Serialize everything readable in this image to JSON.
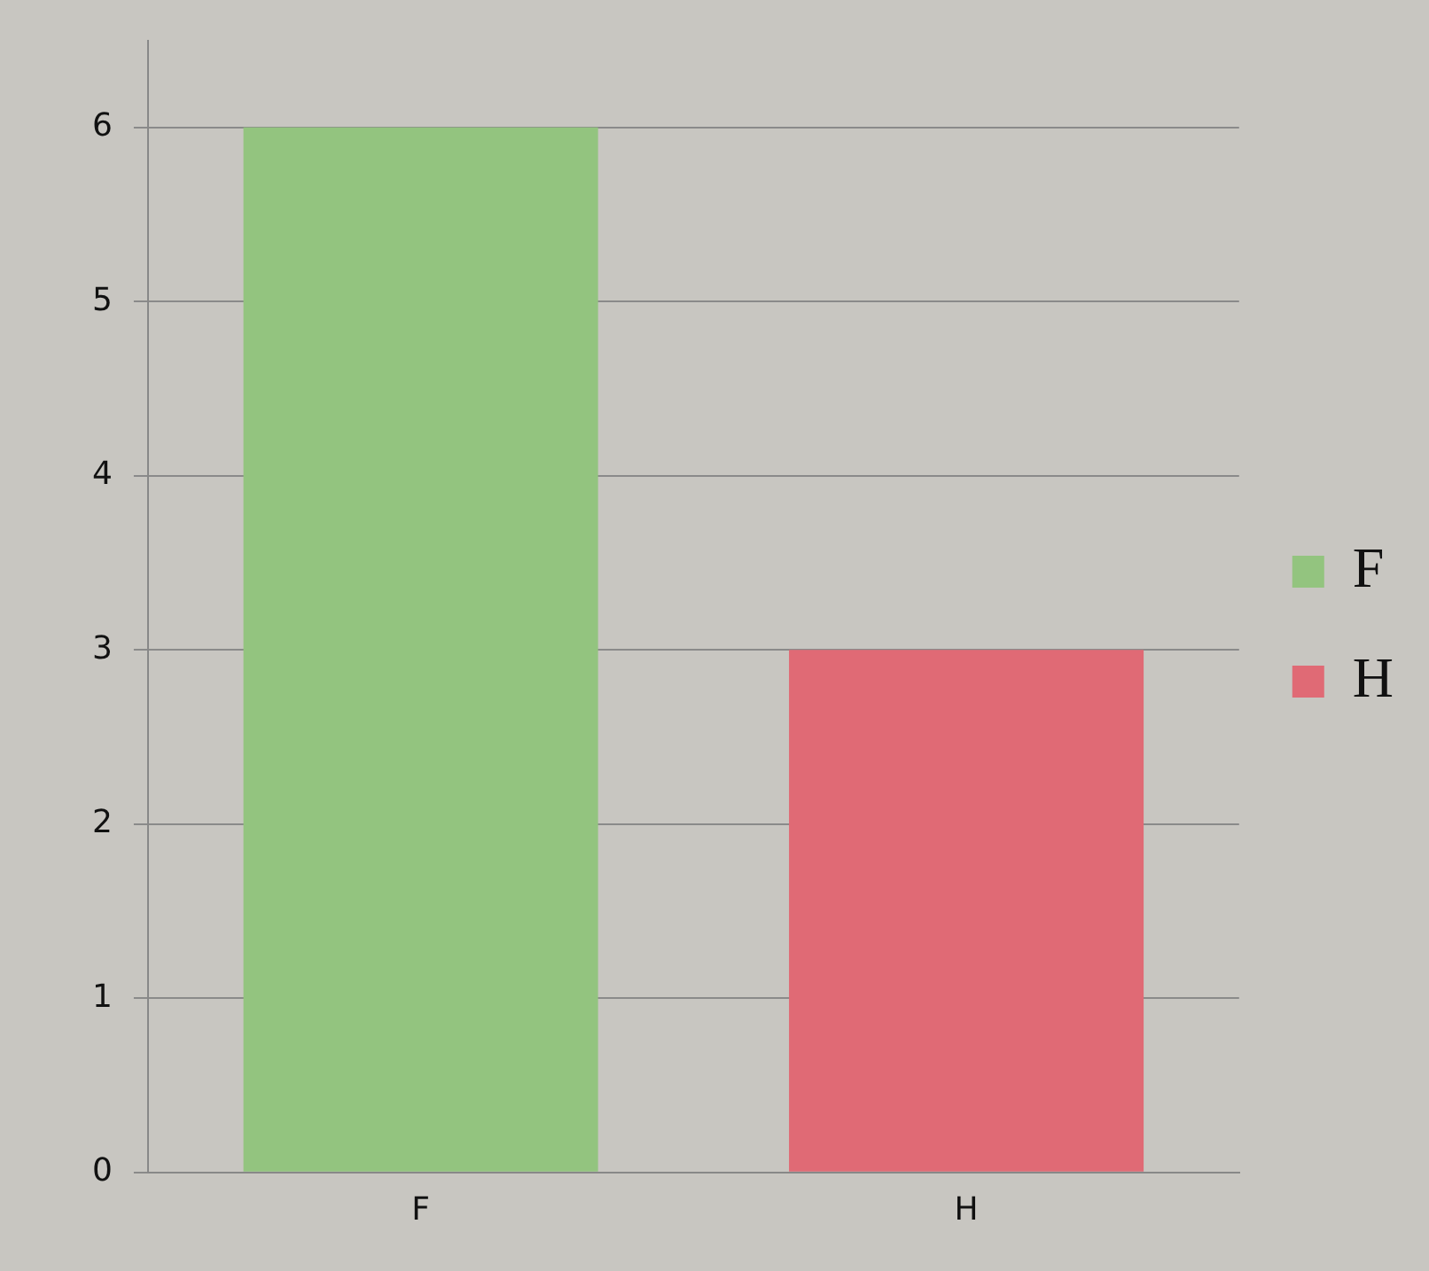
{
  "chart_data": {
    "type": "bar",
    "categories": [
      "F",
      "H"
    ],
    "series": [
      {
        "name": "F",
        "color": "#93c47f",
        "values": [
          6,
          null
        ]
      },
      {
        "name": "H",
        "color": "#e06a75",
        "values": [
          null,
          3
        ]
      }
    ],
    "ylim": [
      0,
      6.5
    ],
    "yticks": [
      0,
      1,
      2,
      3,
      4,
      5,
      6
    ],
    "grid": "y",
    "legend": "right"
  }
}
